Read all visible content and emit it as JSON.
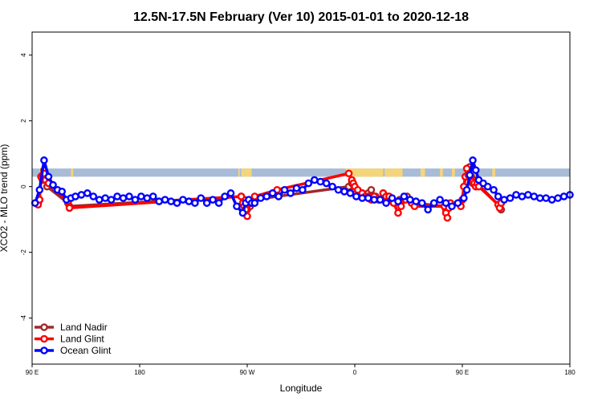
{
  "chart_data": {
    "type": "line",
    "title": "12.5N-17.5N February (Ver 10)   2015-01-01 to 2020-12-18",
    "xlabel": "Longitude",
    "ylabel": "XCO2 - MLO trend (ppm)",
    "xlim": [
      90,
      450
    ],
    "ylim": [
      -5.4,
      4.7
    ],
    "x_ticks": [
      {
        "value": 90,
        "label": "90 E"
      },
      {
        "value": 162,
        "label": "180"
      },
      {
        "value": 234,
        "label": "90 W"
      },
      {
        "value": 306,
        "label": "0"
      },
      {
        "value": 378,
        "label": "90 E"
      },
      {
        "value": 450,
        "label": "180"
      }
    ],
    "y_ticks": [
      {
        "value": -4,
        "label": "-4"
      },
      {
        "value": -2,
        "label": "-2"
      },
      {
        "value": 0,
        "label": "0"
      },
      {
        "value": 2,
        "label": "2"
      },
      {
        "value": 4,
        "label": "4"
      }
    ],
    "land_band": {
      "y_range": [
        0.3,
        0.55
      ],
      "ocean_color": "#a8bcd8",
      "land_color": "#f5d57a",
      "land_segments": [
        [
          95,
          97
        ],
        [
          116,
          117.5
        ],
        [
          228,
          229
        ],
        [
          230,
          232
        ],
        [
          232,
          237
        ],
        [
          300,
          325
        ],
        [
          326,
          330
        ],
        [
          330,
          338
        ],
        [
          350,
          353
        ],
        [
          363,
          365
        ],
        [
          371,
          373
        ],
        [
          382,
          385
        ],
        [
          386,
          388
        ],
        [
          398,
          400
        ]
      ]
    },
    "legend": {
      "position": "bottom-left"
    },
    "series": [
      {
        "name": "Land Nadir",
        "color": "#a0282a",
        "x": [
          94,
          95,
          96,
          97,
          98,
          100,
          114,
          115,
          230,
          232,
          233,
          234,
          236,
          238,
          302,
          304,
          306,
          308,
          311,
          313,
          315,
          317,
          320,
          322,
          325,
          328,
          331,
          333,
          336,
          341,
          343,
          345,
          366,
          367,
          378,
          380,
          383,
          384,
          385,
          386,
          387,
          388,
          403,
          404
        ],
        "y": [
          -0.5,
          -0.4,
          0.3,
          0.2,
          0.5,
          0.0,
          -0.5,
          -0.6,
          -0.3,
          -0.4,
          -0.5,
          -0.7,
          -0.6,
          -0.4,
          0.0,
          0.1,
          -0.1,
          -0.2,
          -0.2,
          -0.3,
          -0.2,
          -0.1,
          -0.3,
          -0.4,
          -0.2,
          -0.3,
          -0.4,
          -0.5,
          -0.4,
          -0.3,
          -0.4,
          -0.5,
          -0.6,
          -0.7,
          -0.4,
          0.3,
          0.6,
          0.3,
          0.1,
          0.2,
          0.0,
          0.1,
          -0.6,
          -0.7
        ]
      },
      {
        "name": "Land Glint",
        "color": "#ff0000",
        "x": [
          94,
          95,
          96,
          97,
          98,
          99,
          101,
          114,
          115,
          230,
          231,
          232,
          233,
          234,
          236,
          239,
          254,
          302,
          304,
          305,
          306,
          307,
          308,
          311,
          313,
          315,
          317,
          319,
          322,
          325,
          327,
          329,
          332,
          335,
          337,
          340,
          344,
          346,
          366,
          367,
          368,
          369,
          370,
          376,
          377,
          378,
          379,
          380,
          381,
          382,
          383,
          384,
          385,
          386,
          387,
          388,
          389,
          402,
          403,
          404
        ],
        "y": [
          -0.55,
          -0.4,
          0.3,
          0.35,
          0.4,
          0.2,
          0.1,
          -0.45,
          -0.65,
          -0.3,
          -0.5,
          -0.6,
          -0.7,
          -0.9,
          -0.5,
          -0.3,
          -0.1,
          0.4,
          0.2,
          0.1,
          0.0,
          -0.2,
          -0.1,
          -0.2,
          -0.3,
          -0.3,
          -0.4,
          -0.3,
          -0.4,
          -0.2,
          -0.3,
          -0.3,
          -0.5,
          -0.8,
          -0.6,
          -0.4,
          -0.5,
          -0.6,
          -0.6,
          -0.8,
          -0.95,
          -0.65,
          -0.5,
          -0.5,
          -0.6,
          -0.4,
          0.0,
          0.3,
          0.55,
          0.35,
          0.3,
          0.2,
          0.15,
          0.1,
          0.0,
          0.1,
          0.0,
          -0.55,
          -0.65,
          -0.5
        ]
      },
      {
        "name": "Ocean Glint",
        "color": "#0000ff",
        "x": [
          92,
          95,
          98,
          101,
          104,
          107,
          110,
          113,
          116,
          119,
          123,
          127,
          131,
          135,
          139,
          143,
          147,
          151,
          155,
          159,
          163,
          167,
          171,
          175,
          179,
          183,
          187,
          191,
          195,
          199,
          203,
          207,
          211,
          215,
          219,
          223,
          227,
          231,
          233,
          235,
          237,
          239,
          243,
          247,
          251,
          255,
          259,
          263,
          267,
          271,
          275,
          279,
          283,
          287,
          291,
          295,
          299,
          303,
          307,
          311,
          315,
          319,
          323,
          327,
          331,
          335,
          339,
          343,
          347,
          351,
          355,
          359,
          363,
          367,
          371,
          375,
          379,
          381,
          383,
          385,
          387,
          389,
          392,
          395,
          399,
          402,
          406,
          410,
          414,
          418,
          422,
          426,
          430,
          434,
          438,
          442,
          446,
          450
        ],
        "y": [
          -0.5,
          -0.1,
          0.8,
          0.3,
          0.05,
          -0.1,
          -0.15,
          -0.4,
          -0.35,
          -0.3,
          -0.25,
          -0.2,
          -0.3,
          -0.4,
          -0.35,
          -0.4,
          -0.3,
          -0.35,
          -0.3,
          -0.4,
          -0.3,
          -0.35,
          -0.3,
          -0.45,
          -0.4,
          -0.45,
          -0.5,
          -0.4,
          -0.45,
          -0.5,
          -0.35,
          -0.5,
          -0.4,
          -0.5,
          -0.3,
          -0.2,
          -0.6,
          -0.8,
          -0.5,
          -0.4,
          -0.5,
          -0.5,
          -0.35,
          -0.3,
          -0.2,
          -0.3,
          -0.1,
          -0.2,
          -0.05,
          -0.1,
          0.1,
          0.2,
          0.15,
          0.1,
          0.0,
          -0.1,
          -0.15,
          -0.2,
          -0.3,
          -0.35,
          -0.35,
          -0.4,
          -0.4,
          -0.5,
          -0.35,
          -0.45,
          -0.3,
          -0.4,
          -0.45,
          -0.5,
          -0.7,
          -0.5,
          -0.4,
          -0.5,
          -0.6,
          -0.5,
          -0.35,
          -0.1,
          0.35,
          0.8,
          0.5,
          0.2,
          0.1,
          0.0,
          -0.1,
          -0.3,
          -0.4,
          -0.35,
          -0.25,
          -0.3,
          -0.25,
          -0.3,
          -0.35,
          -0.35,
          -0.4,
          -0.35,
          -0.3,
          -0.25
        ]
      }
    ]
  }
}
